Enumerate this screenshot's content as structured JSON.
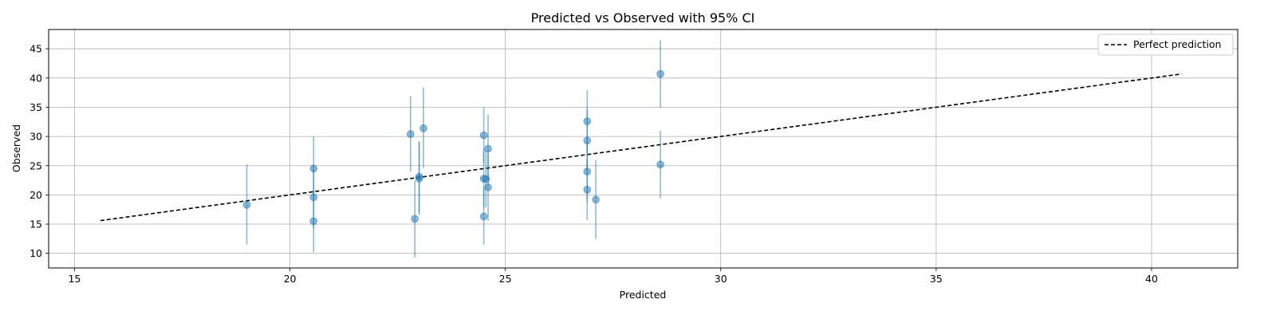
{
  "chart_data": {
    "type": "scatter",
    "title": "Predicted vs Observed with 95% CI",
    "xlabel": "Predicted",
    "ylabel": "Observed",
    "xlim": [
      14.4,
      42.0
    ],
    "ylim": [
      7.5,
      48.3
    ],
    "xticks": [
      15,
      20,
      25,
      30,
      35,
      40
    ],
    "yticks": [
      10,
      15,
      20,
      25,
      30,
      35,
      40,
      45
    ],
    "grid": true,
    "legend_position": "top-right",
    "colors": {
      "points": "#1f77b4",
      "line": "#000000",
      "grid": "#b0b0b0"
    },
    "series": [
      {
        "kind": "errorbar-scatter",
        "points": [
          {
            "x": 19.0,
            "y": 18.3,
            "lo": 11.5,
            "hi": 25.2
          },
          {
            "x": 20.55,
            "y": 24.5,
            "lo": 19.3,
            "hi": 30.0
          },
          {
            "x": 20.55,
            "y": 19.6,
            "lo": 14.3,
            "hi": 25.2
          },
          {
            "x": 20.55,
            "y": 15.5,
            "lo": 10.2,
            "hi": 20.8
          },
          {
            "x": 22.8,
            "y": 30.4,
            "lo": 24.0,
            "hi": 36.9
          },
          {
            "x": 23.1,
            "y": 31.4,
            "lo": 24.6,
            "hi": 38.4
          },
          {
            "x": 23.0,
            "y": 23.1,
            "lo": 17.0,
            "hi": 29.2
          },
          {
            "x": 23.0,
            "y": 22.8,
            "lo": 16.6,
            "hi": 29.0
          },
          {
            "x": 22.9,
            "y": 15.9,
            "lo": 9.3,
            "hi": 22.5
          },
          {
            "x": 24.5,
            "y": 30.2,
            "lo": 25.4,
            "hi": 35.0
          },
          {
            "x": 24.6,
            "y": 27.9,
            "lo": 22.1,
            "hi": 33.8
          },
          {
            "x": 24.5,
            "y": 22.8,
            "lo": 17.8,
            "hi": 27.8
          },
          {
            "x": 24.55,
            "y": 22.7,
            "lo": 17.9,
            "hi": 27.6
          },
          {
            "x": 24.6,
            "y": 21.3,
            "lo": 15.6,
            "hi": 27.0
          },
          {
            "x": 24.5,
            "y": 16.3,
            "lo": 11.5,
            "hi": 21.2
          },
          {
            "x": 26.9,
            "y": 32.6,
            "lo": 27.3,
            "hi": 37.9
          },
          {
            "x": 26.9,
            "y": 29.3,
            "lo": 24.0,
            "hi": 34.6
          },
          {
            "x": 26.9,
            "y": 24.0,
            "lo": 18.8,
            "hi": 29.2
          },
          {
            "x": 26.9,
            "y": 20.9,
            "lo": 15.7,
            "hi": 26.1
          },
          {
            "x": 27.1,
            "y": 19.2,
            "lo": 12.5,
            "hi": 25.9
          },
          {
            "x": 28.6,
            "y": 40.7,
            "lo": 34.9,
            "hi": 46.5
          },
          {
            "x": 28.6,
            "y": 25.2,
            "lo": 19.4,
            "hi": 31.0
          }
        ]
      },
      {
        "name": "Perfect prediction",
        "kind": "line",
        "x": [
          15.6,
          40.7
        ],
        "y": [
          15.6,
          40.7
        ]
      }
    ]
  }
}
